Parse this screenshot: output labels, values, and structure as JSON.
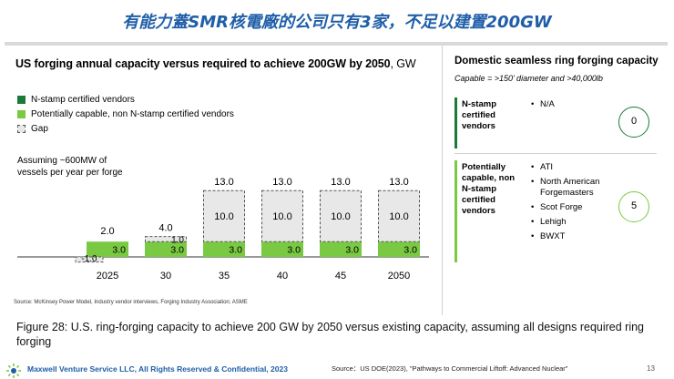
{
  "page_title": "有能力蓋SMR核電廠的公司只有3家，不足以建置200GW",
  "chart": {
    "title_main": "US forging annual capacity versus required to achieve 200GW by 2050",
    "title_unit": ", GW",
    "legend": [
      {
        "label": "N-stamp certified vendors",
        "swatch": "dark"
      },
      {
        "label": "Potentially capable, non N-stamp certified vendors",
        "swatch": "light"
      },
      {
        "label": "Gap",
        "swatch": "gap"
      }
    ],
    "note": "Assuming ~600MW of vessels per year per forge",
    "source": "Source: McKinsey Power Model, Industry vendor interviews, Forging Industry Association; ASME"
  },
  "chart_data": {
    "type": "bar",
    "stacked": true,
    "title": "US forging annual capacity versus required to achieve 200GW by 2050, GW",
    "categories": [
      "2025",
      "30",
      "35",
      "40",
      "45",
      "2050"
    ],
    "series": [
      {
        "name": "N-stamp certified vendors",
        "values": [
          0,
          0,
          0,
          0,
          0,
          0
        ]
      },
      {
        "name": "Potentially capable, non N-stamp certified vendors",
        "values": [
          3.0,
          3.0,
          3.0,
          3.0,
          3.0,
          3.0
        ]
      },
      {
        "name": "Gap",
        "values": [
          -1.0,
          1.0,
          10.0,
          10.0,
          10.0,
          10.0
        ]
      }
    ],
    "segment_labels": {
      "capable": [
        "3.0",
        "3.0",
        "3.0",
        "3.0",
        "3.0",
        "3.0"
      ],
      "gap": [
        "-1.0",
        "1.0",
        "10.0",
        "10.0",
        "10.0",
        "10.0"
      ]
    },
    "totals": [
      2.0,
      4.0,
      13.0,
      13.0,
      13.0,
      13.0
    ],
    "total_labels": [
      "2.0",
      "4.0",
      "13.0",
      "13.0",
      "13.0",
      "13.0"
    ],
    "ylim": [
      -1.5,
      14
    ],
    "colors": {
      "dark": "#1a7a3a",
      "light": "#7ac943",
      "gap_fill": "#e8e8e8",
      "gap_stroke": "#555555"
    }
  },
  "panel": {
    "title": "Domestic seamless ring forging capacity",
    "subtitle": "Capable = >150’ diameter and >40,000lb",
    "groups": [
      {
        "label": "N-stamp certified vendors",
        "items": [
          "N/A"
        ],
        "count": "0"
      },
      {
        "label": "Potentially capable, non N-stamp certified vendors",
        "items": [
          "ATI",
          "North American Forgemasters",
          "Scot Forge",
          "Lehigh",
          "BWXT"
        ],
        "count": "5"
      }
    ]
  },
  "caption": "Figure 28: U.S. ring-forging capacity to achieve 200 GW by 2050 versus existing capacity, assuming all designs required ring forging",
  "footer": {
    "company": "Maxwell Venture Service LLC, All Rights Reserved & Confidential, 2023",
    "source": "Source：US DOE(2023), \"Pathways to Commercial Liftoff: Advanced Nuclear\"",
    "page_number": "13"
  }
}
